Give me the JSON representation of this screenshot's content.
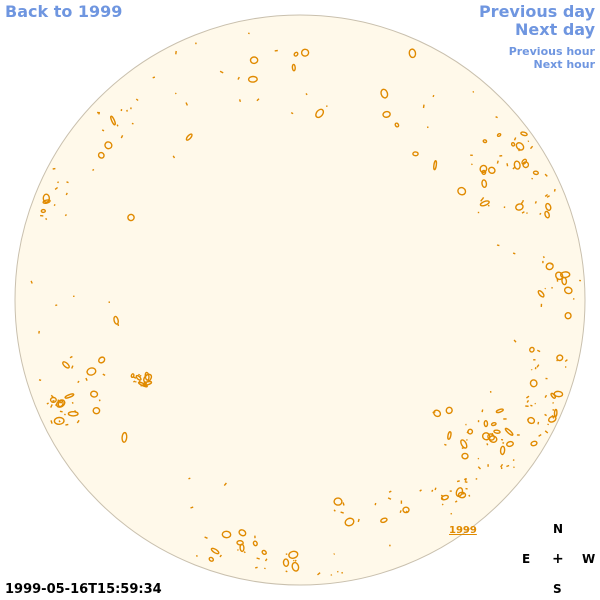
{
  "nav": {
    "back": "Back to 1999",
    "previous_day": "Previous day",
    "next_day": "Next day",
    "previous_hour": "Previous hour",
    "next_hour": "Next hour"
  },
  "disk": {
    "fill_color": "#fff9ea",
    "border_color": "#c9c0ae",
    "feature_color": "#e08a00"
  },
  "year_link": "1999",
  "compass": {
    "north": "N",
    "center": "+",
    "east": "E",
    "west": "W",
    "south": "S"
  },
  "timestamp": "1999-05-16T15:59:34"
}
